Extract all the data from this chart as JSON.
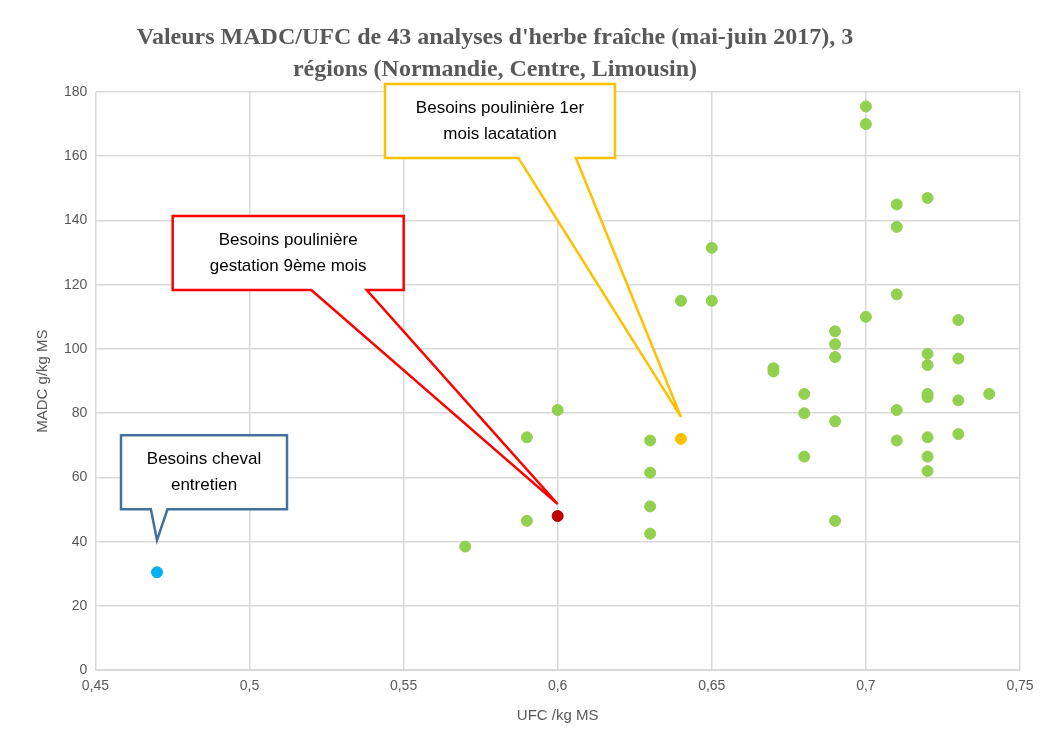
{
  "chart_data": {
    "type": "scatter",
    "title": "Valeurs MADC/UFC  de 43 analyses d'herbe fraîche (mai-juin 2017), 3 régions (Normandie, Centre, Limousin)",
    "xlabel": "UFC /kg MS",
    "ylabel": "MADC g/kg MS",
    "xlim": [
      0.45,
      0.75
    ],
    "xticks": [
      {
        "value": 0.45,
        "label": "0,45"
      },
      {
        "value": 0.5,
        "label": "0,5"
      },
      {
        "value": 0.55,
        "label": "0,55"
      },
      {
        "value": 0.6,
        "label": "0,6"
      },
      {
        "value": 0.65,
        "label": "0,65"
      },
      {
        "value": 0.7,
        "label": "0,7"
      },
      {
        "value": 0.75,
        "label": "0,75"
      }
    ],
    "ylim": [
      0,
      180
    ],
    "yticks": [
      0,
      20,
      40,
      60,
      80,
      100,
      120,
      140,
      160,
      180
    ],
    "grid": true,
    "legend": false,
    "marker": "circle",
    "series": [
      {
        "color": "#92d050",
        "x": [
          0.57,
          0.59,
          0.59,
          0.6,
          0.63,
          0.63,
          0.63,
          0.63,
          0.64,
          0.65,
          0.65,
          0.67,
          0.67,
          0.68,
          0.68,
          0.68,
          0.69,
          0.69,
          0.69,
          0.69,
          0.69,
          0.7,
          0.7,
          0.7,
          0.71,
          0.71,
          0.71,
          0.71,
          0.71,
          0.72,
          0.72,
          0.72,
          0.72,
          0.72,
          0.72,
          0.72,
          0.72,
          0.73,
          0.73,
          0.73,
          0.73,
          0.74
        ],
        "values": [
          38.5,
          72.5,
          46.5,
          81,
          71.5,
          61.5,
          51,
          42.5,
          115,
          131.5,
          115,
          94,
          93,
          86,
          80,
          66.5,
          105.5,
          101.5,
          97.5,
          77.5,
          46.5,
          175.5,
          170,
          110,
          145,
          138,
          117,
          81,
          71.5,
          147,
          98.5,
          95,
          86,
          85,
          72.5,
          66.5,
          62,
          109,
          97,
          84,
          73.5,
          86
        ]
      },
      {
        "color": "#00b0f0",
        "x": [
          0.47
        ],
        "values": [
          30.5
        ]
      },
      {
        "color": "#c00000",
        "x": [
          0.6
        ],
        "values": [
          48
        ]
      },
      {
        "color": "#ffc000",
        "x": [
          0.64
        ],
        "values": [
          72
        ]
      }
    ],
    "annotations": [
      "Besoins cheval entretien",
      "Besoins poulinière gestation 9ème mois",
      "Besoins poulinière 1er mois lacatation"
    ]
  }
}
